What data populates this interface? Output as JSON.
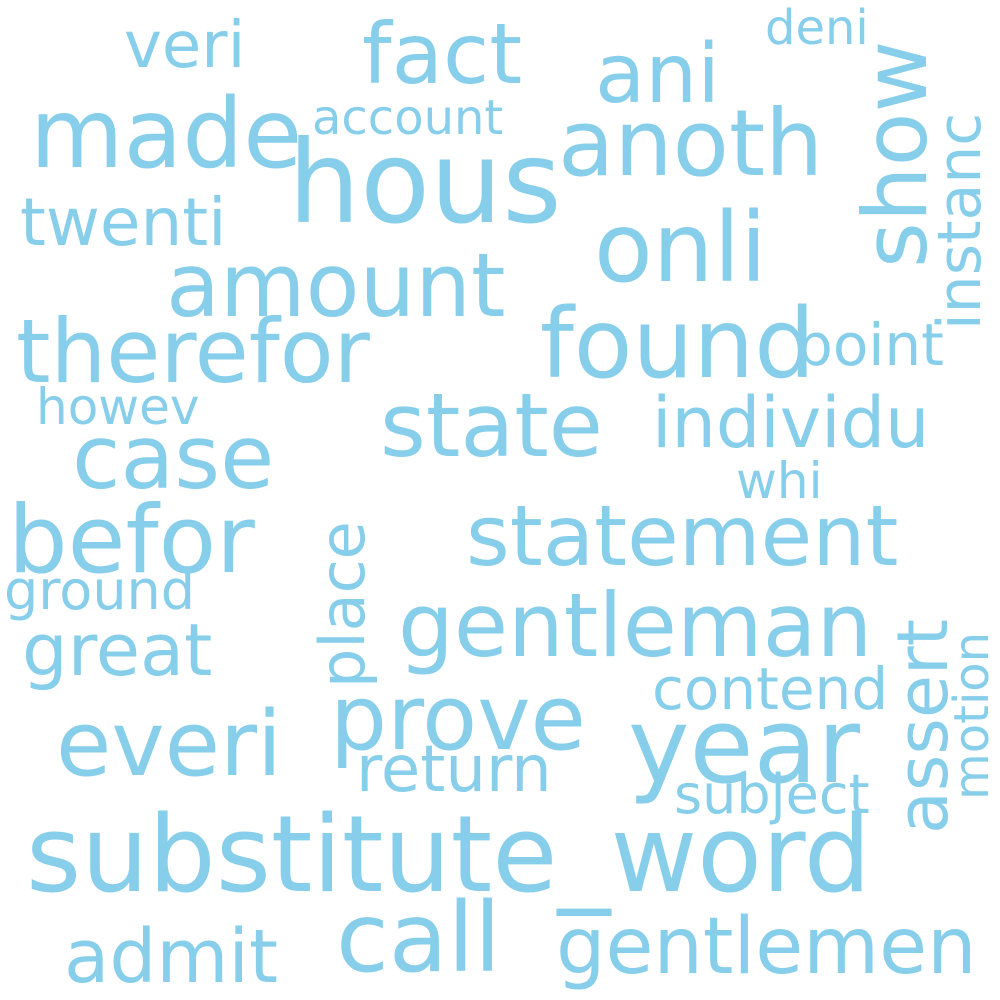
{
  "color": "#87CEEB",
  "words": [
    "veri",
    "fact",
    "ani",
    "deni",
    "made",
    "hous",
    "anoth",
    "account",
    "show",
    "instanc",
    "twenti",
    "onli",
    "amount",
    "therefor",
    "found",
    "point",
    "howev",
    "state",
    "individu",
    "case",
    "whi",
    "befor",
    "statement",
    "place",
    "ground",
    "gentleman",
    "great",
    "assert",
    "motion",
    "contend",
    "prove",
    "everi",
    "year",
    "return",
    "subject",
    "substitute_word",
    "call",
    "gentlemen",
    "admit"
  ]
}
